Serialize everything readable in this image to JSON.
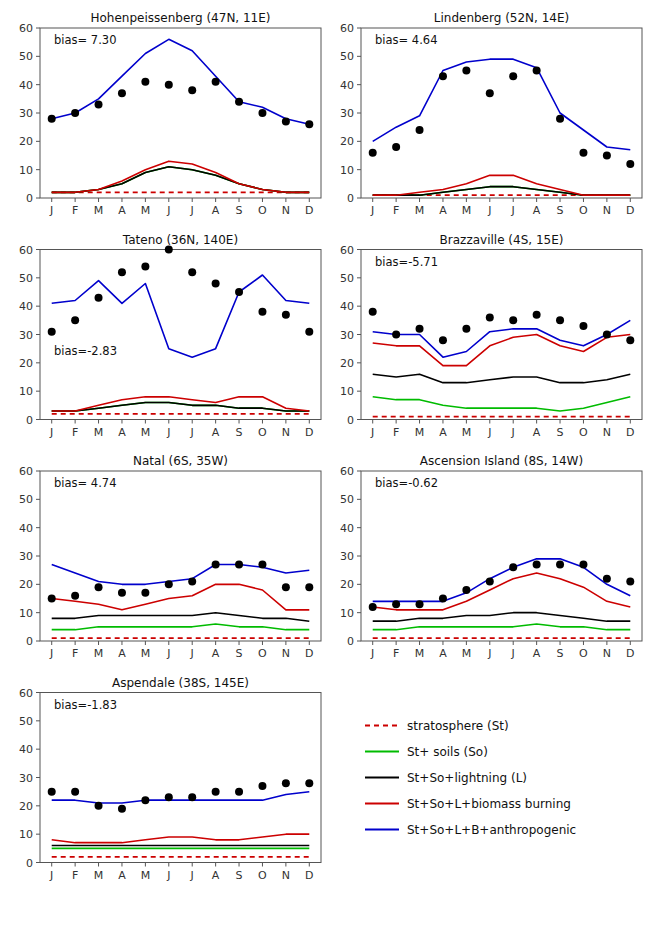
{
  "chart_data": [
    {
      "type": "line",
      "title": "Hohenpeissenberg (47N, 11E)",
      "annotation": "bias= 7.30",
      "categories": [
        "J",
        "F",
        "M",
        "A",
        "M",
        "J",
        "J",
        "A",
        "S",
        "O",
        "N",
        "D"
      ],
      "ylim": [
        0,
        60
      ],
      "yticks": [
        0,
        10,
        20,
        30,
        40,
        50,
        60
      ],
      "series": [
        {
          "name": "stratosphere (St)",
          "color": "#cc0000",
          "line_style": "dashed",
          "values": [
            2,
            2,
            2,
            2,
            2,
            2,
            2,
            2,
            2,
            2,
            2,
            2
          ]
        },
        {
          "name": "St+ soils (So)",
          "color": "#00bb00",
          "line_style": "solid",
          "values": [
            2,
            2,
            3,
            5,
            9,
            11,
            10,
            8,
            5,
            3,
            2,
            2
          ]
        },
        {
          "name": "St+So+lightning (L)",
          "color": "#000000",
          "line_style": "solid",
          "values": [
            2,
            2,
            3,
            5,
            9,
            11,
            10,
            8,
            5,
            3,
            2,
            2
          ]
        },
        {
          "name": "St+So+L+biomass burning",
          "color": "#cc0000",
          "line_style": "solid",
          "values": [
            2,
            2,
            3,
            6,
            10,
            13,
            12,
            9,
            5,
            3,
            2,
            2
          ]
        },
        {
          "name": "St+So+L+B+anthropogenic",
          "color": "#0000cc",
          "line_style": "solid",
          "values": [
            28,
            30,
            35,
            43,
            51,
            56,
            52,
            43,
            34,
            32,
            28,
            26
          ]
        },
        {
          "type": "scatter",
          "marker": "circle",
          "color": "#000000",
          "values": [
            28,
            30,
            33,
            37,
            41,
            40,
            38,
            41,
            34,
            30,
            27,
            26
          ]
        }
      ]
    },
    {
      "type": "line",
      "title": "Lindenberg (52N, 14E)",
      "annotation": "bias= 4.64",
      "categories": [
        "J",
        "F",
        "M",
        "A",
        "M",
        "J",
        "J",
        "A",
        "S",
        "O",
        "N",
        "D"
      ],
      "ylim": [
        0,
        60
      ],
      "yticks": [
        0,
        10,
        20,
        30,
        40,
        50,
        60
      ],
      "series": [
        {
          "color": "#cc0000",
          "line_style": "dashed",
          "values": [
            1,
            1,
            1,
            1,
            1,
            1,
            1,
            1,
            1,
            1,
            1,
            1
          ]
        },
        {
          "color": "#00bb00",
          "line_style": "solid",
          "values": [
            1,
            1,
            1,
            2,
            3,
            4,
            4,
            3,
            2,
            1,
            1,
            1
          ]
        },
        {
          "color": "#000000",
          "line_style": "solid",
          "values": [
            1,
            1,
            1,
            2,
            3,
            4,
            4,
            3,
            2,
            1,
            1,
            1
          ]
        },
        {
          "color": "#cc0000",
          "line_style": "solid",
          "values": [
            1,
            1,
            2,
            3,
            5,
            8,
            8,
            5,
            3,
            1,
            1,
            1
          ]
        },
        {
          "color": "#0000cc",
          "line_style": "solid",
          "values": [
            20,
            25,
            29,
            45,
            48,
            49,
            49,
            46,
            30,
            24,
            18,
            17
          ]
        },
        {
          "type": "scatter",
          "marker": "circle",
          "color": "#000000",
          "values": [
            16,
            18,
            24,
            43,
            45,
            37,
            43,
            45,
            28,
            16,
            15,
            12
          ]
        }
      ]
    },
    {
      "type": "line",
      "title": "Tateno (36N, 140E)",
      "annotation": "bias=-2.83",
      "categories": [
        "J",
        "F",
        "M",
        "A",
        "M",
        "J",
        "J",
        "A",
        "S",
        "O",
        "N",
        "D"
      ],
      "ylim": [
        0,
        60
      ],
      "yticks": [
        0,
        10,
        20,
        30,
        40,
        50,
        60
      ],
      "series": [
        {
          "color": "#cc0000",
          "line_style": "dashed",
          "values": [
            2,
            2,
            2,
            2,
            2,
            2,
            2,
            2,
            2,
            2,
            2,
            2
          ]
        },
        {
          "color": "#00bb00",
          "line_style": "solid",
          "values": [
            3,
            3,
            4,
            5,
            6,
            6,
            5,
            5,
            4,
            4,
            3,
            3
          ]
        },
        {
          "color": "#000000",
          "line_style": "solid",
          "values": [
            3,
            3,
            4,
            5,
            6,
            6,
            5,
            5,
            4,
            4,
            3,
            3
          ]
        },
        {
          "color": "#cc0000",
          "line_style": "solid",
          "values": [
            3,
            3,
            5,
            7,
            8,
            8,
            7,
            6,
            8,
            8,
            4,
            3
          ]
        },
        {
          "color": "#0000cc",
          "line_style": "solid",
          "values": [
            41,
            42,
            49,
            41,
            48,
            25,
            22,
            25,
            45,
            51,
            42,
            41
          ]
        },
        {
          "type": "scatter",
          "marker": "circle",
          "color": "#000000",
          "values": [
            31,
            35,
            43,
            52,
            54,
            60,
            52,
            48,
            45,
            38,
            37,
            31
          ]
        }
      ]
    },
    {
      "type": "line",
      "title": "Brazzaville (4S, 15E)",
      "annotation": "bias=-5.71",
      "categories": [
        "J",
        "F",
        "M",
        "A",
        "M",
        "J",
        "J",
        "A",
        "S",
        "O",
        "N",
        "D"
      ],
      "ylim": [
        0,
        60
      ],
      "yticks": [
        0,
        10,
        20,
        30,
        40,
        50,
        60
      ],
      "series": [
        {
          "color": "#cc0000",
          "line_style": "dashed",
          "values": [
            1,
            1,
            1,
            1,
            1,
            1,
            1,
            1,
            1,
            1,
            1,
            1
          ]
        },
        {
          "color": "#00bb00",
          "line_style": "solid",
          "values": [
            8,
            7,
            7,
            5,
            4,
            4,
            4,
            4,
            3,
            4,
            6,
            8
          ]
        },
        {
          "color": "#000000",
          "line_style": "solid",
          "values": [
            16,
            15,
            16,
            13,
            13,
            14,
            15,
            15,
            13,
            13,
            14,
            16
          ]
        },
        {
          "color": "#cc0000",
          "line_style": "solid",
          "values": [
            27,
            26,
            26,
            19,
            19,
            26,
            29,
            30,
            26,
            24,
            29,
            30
          ]
        },
        {
          "color": "#0000cc",
          "line_style": "solid",
          "values": [
            31,
            30,
            30,
            22,
            24,
            31,
            32,
            32,
            28,
            26,
            30,
            35
          ]
        },
        {
          "type": "scatter",
          "marker": "circle",
          "color": "#000000",
          "values": [
            38,
            30,
            32,
            28,
            32,
            36,
            35,
            37,
            35,
            33,
            30,
            28
          ]
        }
      ]
    },
    {
      "type": "line",
      "title": "Natal (6S, 35W)",
      "annotation": "bias= 4.74",
      "categories": [
        "J",
        "F",
        "M",
        "A",
        "M",
        "J",
        "J",
        "A",
        "S",
        "O",
        "N",
        "D"
      ],
      "ylim": [
        0,
        60
      ],
      "yticks": [
        0,
        10,
        20,
        30,
        40,
        50,
        60
      ],
      "series": [
        {
          "color": "#cc0000",
          "line_style": "dashed",
          "values": [
            1,
            1,
            1,
            1,
            1,
            1,
            1,
            1,
            1,
            1,
            1,
            1
          ]
        },
        {
          "color": "#00bb00",
          "line_style": "solid",
          "values": [
            4,
            4,
            5,
            5,
            5,
            5,
            5,
            6,
            5,
            5,
            4,
            4
          ]
        },
        {
          "color": "#000000",
          "line_style": "solid",
          "values": [
            8,
            8,
            9,
            9,
            9,
            9,
            9,
            10,
            9,
            8,
            8,
            7
          ]
        },
        {
          "color": "#cc0000",
          "line_style": "solid",
          "values": [
            15,
            14,
            13,
            11,
            13,
            15,
            16,
            20,
            20,
            18,
            11,
            11
          ]
        },
        {
          "color": "#0000cc",
          "line_style": "solid",
          "values": [
            27,
            24,
            21,
            20,
            20,
            21,
            22,
            27,
            27,
            26,
            24,
            25
          ]
        },
        {
          "type": "scatter",
          "marker": "circle",
          "color": "#000000",
          "values": [
            15,
            16,
            19,
            17,
            17,
            20,
            21,
            27,
            27,
            27,
            19,
            19
          ]
        }
      ]
    },
    {
      "type": "line",
      "title": "Ascension Island (8S, 14W)",
      "annotation": "bias=-0.62",
      "categories": [
        "J",
        "F",
        "M",
        "A",
        "M",
        "J",
        "J",
        "A",
        "S",
        "O",
        "N",
        "D"
      ],
      "ylim": [
        0,
        60
      ],
      "yticks": [
        0,
        10,
        20,
        30,
        40,
        50,
        60
      ],
      "series": [
        {
          "color": "#cc0000",
          "line_style": "dashed",
          "values": [
            1,
            1,
            1,
            1,
            1,
            1,
            1,
            1,
            1,
            1,
            1,
            1
          ]
        },
        {
          "color": "#00bb00",
          "line_style": "solid",
          "values": [
            4,
            4,
            5,
            5,
            5,
            5,
            5,
            6,
            5,
            5,
            4,
            4
          ]
        },
        {
          "color": "#000000",
          "line_style": "solid",
          "values": [
            7,
            7,
            8,
            8,
            9,
            9,
            10,
            10,
            9,
            8,
            7,
            7
          ]
        },
        {
          "color": "#cc0000",
          "line_style": "solid",
          "values": [
            12,
            11,
            11,
            11,
            14,
            18,
            22,
            24,
            22,
            19,
            14,
            12
          ]
        },
        {
          "color": "#0000cc",
          "line_style": "solid",
          "values": [
            14,
            14,
            14,
            14,
            17,
            22,
            26,
            29,
            29,
            26,
            20,
            16
          ]
        },
        {
          "type": "scatter",
          "marker": "circle",
          "color": "#000000",
          "values": [
            12,
            13,
            13,
            15,
            18,
            21,
            26,
            27,
            27,
            27,
            22,
            21
          ]
        }
      ]
    },
    {
      "type": "line",
      "title": "Aspendale (38S, 145E)",
      "annotation": "bias=-1.83",
      "categories": [
        "J",
        "F",
        "M",
        "A",
        "M",
        "J",
        "J",
        "A",
        "S",
        "O",
        "N",
        "D"
      ],
      "ylim": [
        0,
        60
      ],
      "yticks": [
        0,
        10,
        20,
        30,
        40,
        50,
        60
      ],
      "series": [
        {
          "color": "#cc0000",
          "line_style": "dashed",
          "values": [
            2,
            2,
            2,
            2,
            2,
            2,
            2,
            2,
            2,
            2,
            2,
            2
          ]
        },
        {
          "color": "#00bb00",
          "line_style": "solid",
          "values": [
            5,
            5,
            5,
            5,
            5,
            5,
            5,
            5,
            5,
            5,
            5,
            5
          ]
        },
        {
          "color": "#000000",
          "line_style": "solid",
          "values": [
            6,
            6,
            6,
            6,
            6,
            6,
            6,
            6,
            6,
            6,
            6,
            6
          ]
        },
        {
          "color": "#cc0000",
          "line_style": "solid",
          "values": [
            8,
            7,
            7,
            7,
            8,
            9,
            9,
            8,
            8,
            9,
            10,
            10
          ]
        },
        {
          "color": "#0000cc",
          "line_style": "solid",
          "values": [
            22,
            22,
            21,
            21,
            22,
            22,
            22,
            22,
            22,
            22,
            24,
            25
          ]
        },
        {
          "type": "scatter",
          "marker": "circle",
          "color": "#000000",
          "values": [
            25,
            25,
            20,
            19,
            22,
            23,
            23,
            25,
            25,
            27,
            28,
            28
          ]
        }
      ]
    }
  ]
}
